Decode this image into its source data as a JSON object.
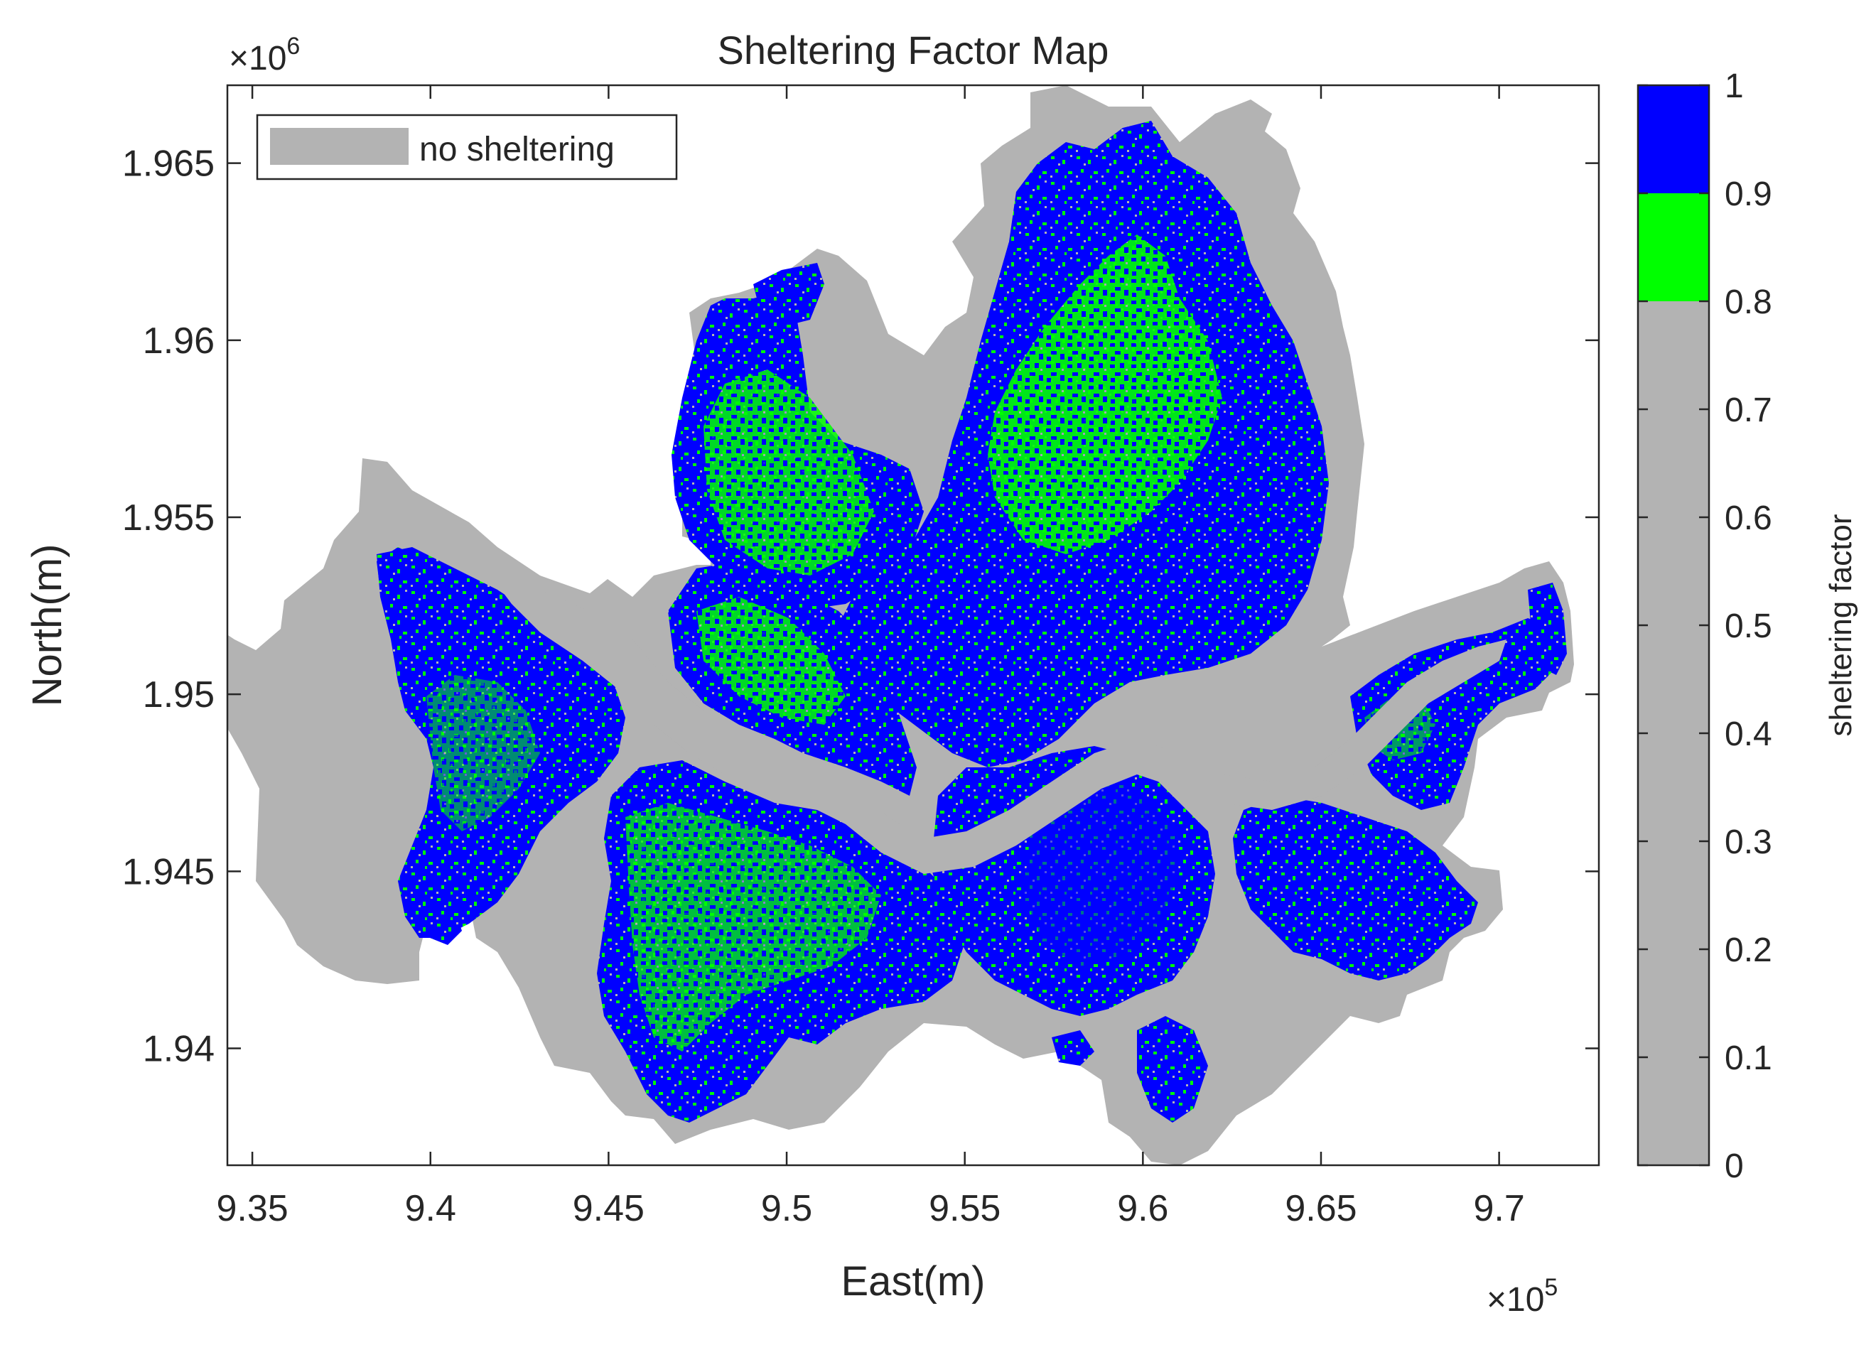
{
  "title": "Sheltering Factor Map",
  "x_axis": {
    "label": "East(m)",
    "exponent_prefix": "×10",
    "exponent": "5",
    "min": 9.343,
    "max": 9.728,
    "ticks": [
      9.35,
      9.4,
      9.45,
      9.5,
      9.55,
      9.6,
      9.65,
      9.7
    ],
    "tick_labels": [
      "9.35",
      "9.4",
      "9.45",
      "9.5",
      "9.55",
      "9.6",
      "9.65",
      "9.7"
    ]
  },
  "y_axis": {
    "label": "North(m)",
    "exponent_prefix": "×10",
    "exponent": "6",
    "min": 1.9367,
    "max": 1.9672,
    "ticks": [
      1.94,
      1.945,
      1.95,
      1.955,
      1.96,
      1.965
    ],
    "tick_labels": [
      "1.94",
      "1.945",
      "1.95",
      "1.955",
      "1.96",
      "1.965"
    ]
  },
  "legend": {
    "position": "top-left",
    "entries": [
      {
        "label": "no sheltering",
        "color": "#B3B3B3"
      }
    ]
  },
  "colorbar": {
    "label": "sheltering factor",
    "min": 0,
    "max": 1,
    "ticks": [
      0,
      0.1,
      0.2,
      0.3,
      0.4,
      0.5,
      0.6,
      0.7,
      0.8,
      0.9,
      1
    ],
    "tick_labels": [
      "0",
      "0.1",
      "0.2",
      "0.3",
      "0.4",
      "0.5",
      "0.6",
      "0.7",
      "0.8",
      "0.9",
      "1"
    ],
    "bands": [
      {
        "from": 0,
        "to": 0.8,
        "color": "#B3B3B3"
      },
      {
        "from": 0.8,
        "to": 0.9,
        "color": "#00FF00"
      },
      {
        "from": 0.9,
        "to": 1.0,
        "color": "#0000FF"
      }
    ]
  },
  "colors": {
    "no_sheltering": "#B3B3B3",
    "medium_sheltering": "#00FF00",
    "high_sheltering": "#0000FF",
    "axis": "#262626"
  }
}
